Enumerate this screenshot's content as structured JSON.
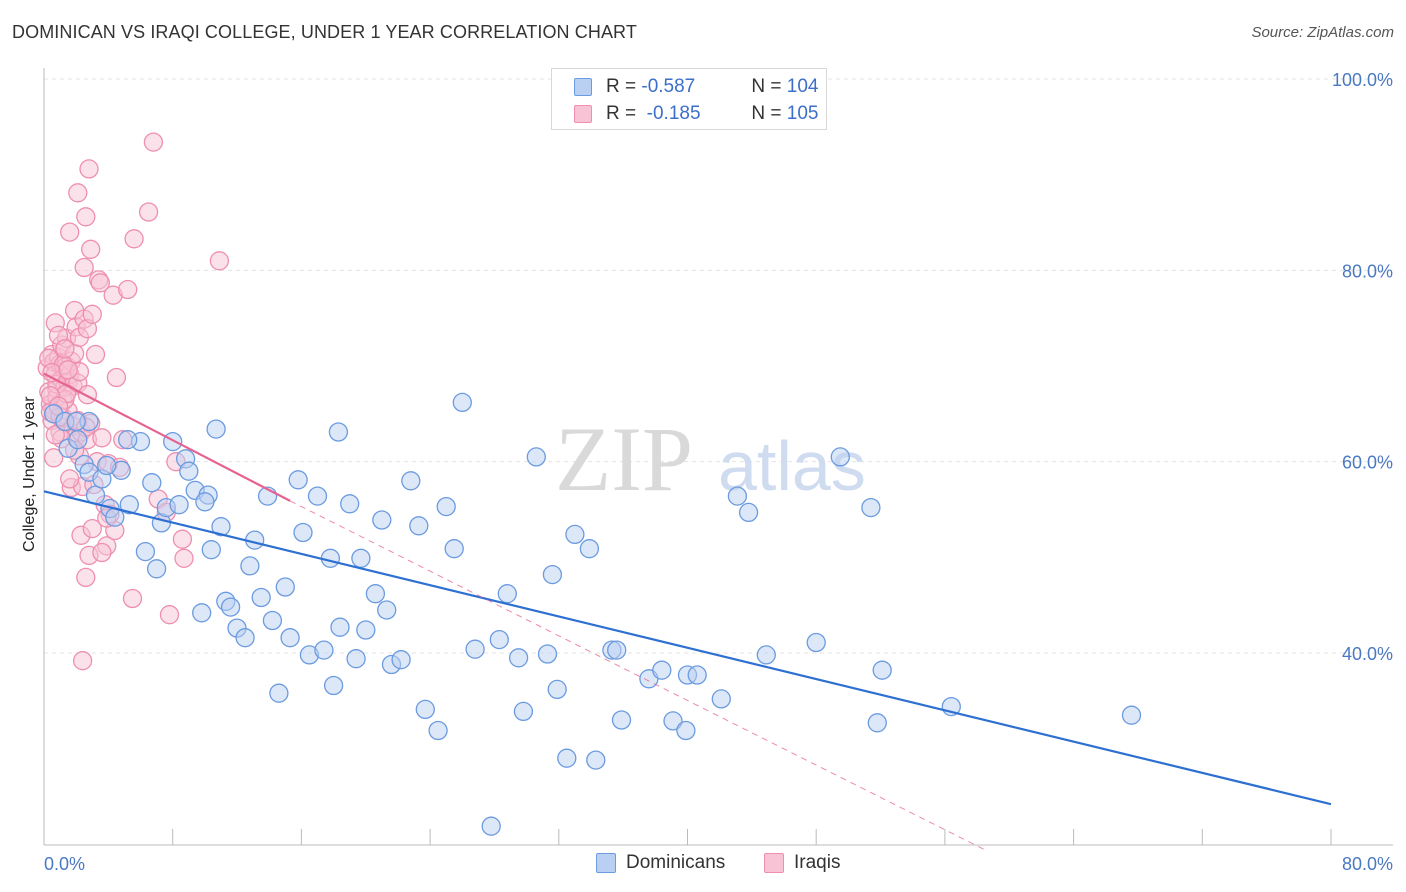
{
  "title": "DOMINICAN VS IRAQI COLLEGE, UNDER 1 YEAR CORRELATION CHART",
  "source": "Source: ZipAtlas.com",
  "watermark": {
    "zip": "ZIP",
    "atlas": "atlas"
  },
  "colors": {
    "blue": "#6b9be0",
    "blue_fill": "#b9d0f2",
    "blue_line": "#2d70d2",
    "pink": "#ee8fb0",
    "pink_fill": "#f7c3d5",
    "pink_line": "#e5638f",
    "tick": "#4a78c2"
  },
  "legend": {
    "rows": [
      {
        "r_label": "R = ",
        "r_value": "-0.587",
        "n_label": "N = ",
        "n_value": "104"
      },
      {
        "r_label": "R = ",
        "r_value": " -0.185",
        "n_label": "N = ",
        "n_value": "105"
      }
    ]
  },
  "bottom_legend": {
    "dominicans": "Dominicans",
    "iraqis": "Iraqis"
  },
  "chart_data": {
    "type": "scatter",
    "title": "DOMINICAN VS IRAQI COLLEGE, UNDER 1 YEAR CORRELATION CHART",
    "xlabel": "",
    "ylabel": "College, Under 1 year",
    "xlim": [
      0,
      80
    ],
    "ylim": [
      20,
      103
    ],
    "x_tick_labels": [
      "0.0%",
      "80.0%"
    ],
    "y_ticks": [
      40,
      60,
      80,
      100
    ],
    "y_tick_labels": [
      "40.0%",
      "60.0%",
      "80.0%",
      "100.0%"
    ],
    "grid": "horizontal dashed",
    "legend_position": "top-center",
    "series": [
      {
        "name": "Dominicans",
        "r": -0.587,
        "n": 104,
        "trend": {
          "x0": 0,
          "y0": 56.9,
          "x1": 80,
          "y1": 24.2
        },
        "points": [
          [
            0.6,
            65.0
          ],
          [
            1.3,
            64.2
          ],
          [
            1.5,
            61.4
          ],
          [
            2.1,
            62.3
          ],
          [
            2.5,
            59.7
          ],
          [
            2.8,
            58.9
          ],
          [
            3.2,
            56.5
          ],
          [
            3.6,
            58.2
          ],
          [
            4.1,
            55.1
          ],
          [
            4.4,
            54.2
          ],
          [
            4.8,
            59.1
          ],
          [
            5.3,
            55.5
          ],
          [
            6.0,
            62.1
          ],
          [
            6.3,
            50.6
          ],
          [
            6.7,
            57.8
          ],
          [
            7.0,
            48.8
          ],
          [
            7.3,
            53.6
          ],
          [
            7.6,
            55.2
          ],
          [
            8.0,
            62.1
          ],
          [
            8.4,
            55.5
          ],
          [
            8.8,
            60.3
          ],
          [
            9.0,
            59.0
          ],
          [
            9.4,
            57.0
          ],
          [
            9.8,
            44.2
          ],
          [
            10.2,
            56.5
          ],
          [
            10.4,
            50.8
          ],
          [
            10.7,
            63.4
          ],
          [
            11.0,
            53.2
          ],
          [
            11.3,
            45.4
          ],
          [
            11.6,
            44.8
          ],
          [
            12.0,
            42.6
          ],
          [
            12.5,
            41.6
          ],
          [
            12.8,
            49.1
          ],
          [
            13.1,
            51.8
          ],
          [
            13.5,
            45.8
          ],
          [
            13.9,
            56.4
          ],
          [
            14.2,
            43.4
          ],
          [
            14.6,
            35.8
          ],
          [
            15.0,
            46.9
          ],
          [
            15.3,
            41.6
          ],
          [
            15.8,
            58.1
          ],
          [
            16.1,
            52.6
          ],
          [
            16.5,
            39.8
          ],
          [
            17.0,
            56.4
          ],
          [
            17.4,
            40.3
          ],
          [
            17.8,
            49.9
          ],
          [
            18.0,
            36.6
          ],
          [
            18.4,
            42.7
          ],
          [
            19.0,
            55.6
          ],
          [
            19.4,
            39.4
          ],
          [
            19.7,
            49.9
          ],
          [
            20.0,
            42.4
          ],
          [
            20.6,
            46.2
          ],
          [
            21.0,
            53.9
          ],
          [
            21.3,
            44.5
          ],
          [
            21.6,
            38.8
          ],
          [
            22.2,
            39.3
          ],
          [
            22.8,
            58.0
          ],
          [
            23.3,
            53.3
          ],
          [
            23.7,
            34.1
          ],
          [
            24.5,
            31.9
          ],
          [
            25.0,
            55.3
          ],
          [
            25.5,
            50.9
          ],
          [
            26.0,
            66.2
          ],
          [
            26.8,
            40.4
          ],
          [
            27.8,
            21.9
          ],
          [
            28.3,
            41.4
          ],
          [
            28.8,
            46.2
          ],
          [
            29.5,
            39.5
          ],
          [
            29.8,
            33.9
          ],
          [
            30.6,
            60.5
          ],
          [
            31.3,
            39.9
          ],
          [
            31.6,
            48.2
          ],
          [
            31.9,
            36.2
          ],
          [
            32.5,
            29.0
          ],
          [
            33.0,
            52.4
          ],
          [
            33.9,
            50.9
          ],
          [
            34.3,
            28.8
          ],
          [
            35.3,
            40.3
          ],
          [
            35.6,
            40.3
          ],
          [
            35.9,
            33.0
          ],
          [
            37.6,
            37.3
          ],
          [
            38.4,
            38.2
          ],
          [
            39.1,
            32.9
          ],
          [
            39.9,
            31.9
          ],
          [
            40.0,
            37.7
          ],
          [
            40.6,
            37.7
          ],
          [
            42.1,
            35.2
          ],
          [
            43.1,
            56.4
          ],
          [
            43.8,
            54.7
          ],
          [
            44.9,
            39.8
          ],
          [
            48.0,
            41.1
          ],
          [
            49.5,
            60.5
          ],
          [
            51.4,
            55.2
          ],
          [
            51.8,
            32.7
          ],
          [
            52.1,
            38.2
          ],
          [
            56.4,
            34.4
          ],
          [
            67.6,
            33.5
          ],
          [
            2.8,
            64.2
          ],
          [
            5.2,
            62.3
          ],
          [
            10.0,
            55.8
          ],
          [
            18.3,
            63.1
          ],
          [
            3.9,
            59.6
          ],
          [
            2.0,
            64.2
          ]
        ]
      },
      {
        "name": "Iraqis",
        "r": -0.185,
        "n": 105,
        "trend": {
          "x0": 0,
          "y0": 69.2,
          "x1": 15.3,
          "y1": 55.9
        },
        "trend_extension": {
          "x0": 15.3,
          "y0": 55.9,
          "x1": 58.4,
          "y1": 19.5
        },
        "points": [
          [
            0.2,
            69.8
          ],
          [
            0.3,
            67.3
          ],
          [
            0.4,
            66.0
          ],
          [
            0.5,
            64.3
          ],
          [
            0.5,
            71.2
          ],
          [
            0.6,
            70.4
          ],
          [
            0.6,
            65.4
          ],
          [
            0.7,
            74.5
          ],
          [
            0.7,
            69.1
          ],
          [
            0.8,
            67.6
          ],
          [
            0.8,
            66.7
          ],
          [
            0.9,
            70.9
          ],
          [
            1.0,
            70.2
          ],
          [
            1.0,
            63.1
          ],
          [
            1.1,
            72.2
          ],
          [
            1.1,
            68.6
          ],
          [
            1.2,
            66.3
          ],
          [
            1.2,
            64.6
          ],
          [
            1.3,
            69.5
          ],
          [
            1.3,
            67.8
          ],
          [
            1.4,
            70.0
          ],
          [
            1.4,
            72.9
          ],
          [
            1.5,
            68.3
          ],
          [
            1.5,
            65.3
          ],
          [
            1.6,
            69.1
          ],
          [
            1.6,
            84.0
          ],
          [
            1.7,
            70.5
          ],
          [
            1.7,
            57.3
          ],
          [
            1.8,
            67.9
          ],
          [
            1.8,
            63.7
          ],
          [
            1.9,
            75.8
          ],
          [
            1.9,
            71.3
          ],
          [
            2.0,
            74.1
          ],
          [
            2.0,
            62.6
          ],
          [
            2.1,
            88.1
          ],
          [
            2.1,
            68.2
          ],
          [
            2.2,
            60.6
          ],
          [
            2.2,
            73.0
          ],
          [
            2.3,
            63.1
          ],
          [
            2.3,
            52.3
          ],
          [
            2.4,
            57.4
          ],
          [
            2.4,
            39.2
          ],
          [
            2.5,
            80.3
          ],
          [
            2.5,
            74.9
          ],
          [
            2.6,
            85.6
          ],
          [
            2.6,
            47.9
          ],
          [
            2.7,
            73.9
          ],
          [
            2.7,
            62.3
          ],
          [
            2.8,
            90.6
          ],
          [
            2.8,
            50.2
          ],
          [
            2.9,
            82.2
          ],
          [
            2.9,
            64.0
          ],
          [
            3.0,
            75.4
          ],
          [
            3.0,
            53.0
          ],
          [
            3.2,
            71.2
          ],
          [
            3.3,
            60.0
          ],
          [
            3.4,
            79.0
          ],
          [
            3.5,
            78.7
          ],
          [
            3.6,
            62.5
          ],
          [
            3.8,
            55.5
          ],
          [
            3.9,
            51.2
          ],
          [
            4.0,
            59.8
          ],
          [
            4.1,
            54.5
          ],
          [
            4.3,
            77.4
          ],
          [
            4.5,
            68.8
          ],
          [
            4.7,
            59.4
          ],
          [
            4.9,
            62.3
          ],
          [
            5.2,
            78.0
          ],
          [
            5.5,
            45.7
          ],
          [
            5.6,
            83.3
          ],
          [
            6.5,
            86.1
          ],
          [
            6.8,
            93.4
          ],
          [
            7.1,
            56.1
          ],
          [
            7.6,
            54.7
          ],
          [
            7.8,
            44.0
          ],
          [
            8.2,
            60.0
          ],
          [
            8.6,
            51.9
          ],
          [
            8.7,
            49.9
          ],
          [
            10.9,
            81.0
          ],
          [
            0.4,
            65.2
          ],
          [
            0.9,
            73.2
          ],
          [
            1.1,
            62.4
          ],
          [
            1.3,
            66.5
          ],
          [
            0.3,
            70.8
          ],
          [
            0.6,
            60.4
          ],
          [
            0.8,
            68.1
          ],
          [
            1.0,
            64.7
          ],
          [
            1.2,
            70.1
          ],
          [
            1.6,
            58.2
          ],
          [
            2.1,
            64.3
          ],
          [
            3.1,
            57.6
          ],
          [
            3.6,
            50.5
          ],
          [
            4.4,
            52.8
          ],
          [
            0.5,
            69.3
          ],
          [
            1.4,
            67.1
          ],
          [
            0.7,
            62.8
          ],
          [
            2.7,
            67.0
          ],
          [
            1.9,
            61.2
          ],
          [
            0.4,
            66.9
          ],
          [
            1.3,
            71.8
          ],
          [
            2.2,
            69.4
          ],
          [
            0.9,
            65.8
          ],
          [
            3.9,
            54.1
          ],
          [
            1.5,
            69.6
          ],
          [
            2.6,
            63.6
          ]
        ]
      }
    ]
  }
}
